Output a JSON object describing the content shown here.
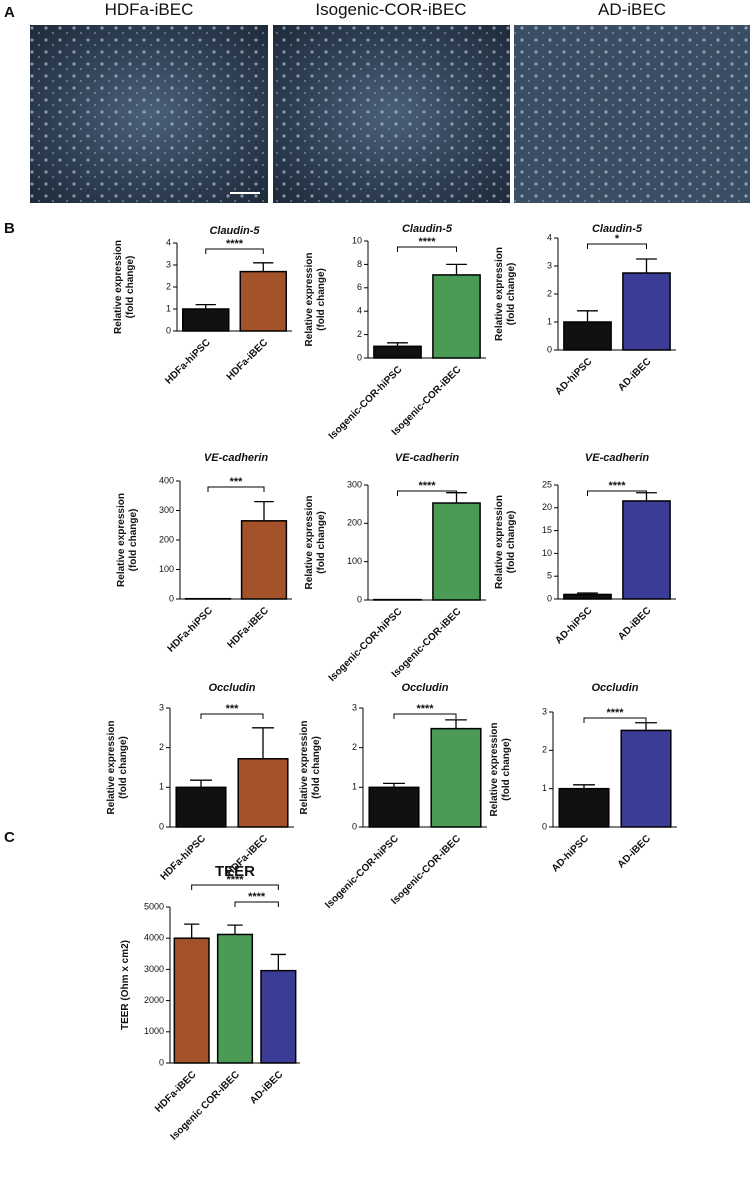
{
  "panel_labels": [
    "A",
    "B",
    "C"
  ],
  "images": [
    {
      "title": "HDFa-iBEC"
    },
    {
      "title": "Isogenic-COR-iBEC"
    },
    {
      "title": "AD-iBEC"
    }
  ],
  "chart_data": [
    {
      "type": "bar",
      "title": "Claudin-5",
      "ylabel": [
        "Relative expression",
        "(fold change)"
      ],
      "categories": [
        "HDFa-hiPSC",
        "HDFa-iBEC"
      ],
      "values": [
        1,
        2.7
      ],
      "errors": [
        0.2,
        0.4
      ],
      "colors": [
        "#111111",
        "#a3522a"
      ],
      "ylim": [
        0,
        4
      ],
      "yticks": [
        0,
        1,
        2,
        3,
        4
      ],
      "annotations": [
        {
          "text": "****",
          "span": [
            0,
            1
          ]
        }
      ]
    },
    {
      "type": "bar",
      "title": "Claudin-5",
      "ylabel": [
        "Relative expression",
        "(fold change)"
      ],
      "categories": [
        "Isogenic-COR-hiPSC",
        "Isogenic-COR-iBEC"
      ],
      "values": [
        1,
        7.1
      ],
      "errors": [
        0.3,
        0.9
      ],
      "colors": [
        "#111111",
        "#4b9a56"
      ],
      "ylim": [
        0,
        10
      ],
      "yticks": [
        0,
        2,
        4,
        6,
        8,
        10
      ],
      "annotations": [
        {
          "text": "****",
          "span": [
            0,
            1
          ]
        }
      ]
    },
    {
      "type": "bar",
      "title": "Claudin-5",
      "ylabel": [
        "Relative expression",
        "(fold change)"
      ],
      "categories": [
        "AD-hiPSC",
        "AD-iBEC"
      ],
      "values": [
        1,
        2.75
      ],
      "errors": [
        0.4,
        0.5
      ],
      "colors": [
        "#111111",
        "#3a3c95"
      ],
      "ylim": [
        0,
        4
      ],
      "yticks": [
        0,
        1,
        2,
        3,
        4
      ],
      "annotations": [
        {
          "text": "*",
          "span": [
            0,
            1
          ]
        }
      ]
    },
    {
      "type": "bar",
      "title": "VE-cadherin",
      "ylabel": [
        "Relative expression",
        "(fold change)"
      ],
      "categories": [
        "HDFa-hiPSC",
        "HDFa-iBEC"
      ],
      "values": [
        1,
        265
      ],
      "errors": [
        0,
        65
      ],
      "colors": [
        "#111111",
        "#a3522a"
      ],
      "ylim": [
        0,
        400
      ],
      "yticks": [
        0,
        100,
        200,
        300,
        400
      ],
      "annotations": [
        {
          "text": "***",
          "span": [
            0,
            1
          ]
        }
      ]
    },
    {
      "type": "bar",
      "title": "VE-cadherin",
      "ylabel": [
        "Relative expression",
        "(fold change)"
      ],
      "categories": [
        "Isogenic-COR-hiPSC",
        "Isogenic-COR-iBEC"
      ],
      "values": [
        1,
        253
      ],
      "errors": [
        0,
        27
      ],
      "colors": [
        "#111111",
        "#4b9a56"
      ],
      "ylim": [
        0,
        300
      ],
      "yticks": [
        0,
        100,
        200,
        300
      ],
      "annotations": [
        {
          "text": "****",
          "span": [
            0,
            1
          ]
        }
      ]
    },
    {
      "type": "bar",
      "title": "VE-cadherin",
      "ylabel": [
        "Relative expression",
        "(fold change)"
      ],
      "categories": [
        "AD-hiPSC",
        "AD-iBEC"
      ],
      "values": [
        1,
        21.5
      ],
      "errors": [
        0.3,
        1.8
      ],
      "colors": [
        "#111111",
        "#3a3c95"
      ],
      "ylim": [
        0,
        25
      ],
      "yticks": [
        0,
        5,
        10,
        15,
        20,
        25
      ],
      "annotations": [
        {
          "text": "****",
          "span": [
            0,
            1
          ]
        }
      ]
    },
    {
      "type": "bar",
      "title": "Occludin",
      "ylabel": [
        "Relative expression",
        "(fold change)"
      ],
      "categories": [
        "HDFa-hiPSC",
        "HDFa-iBEC"
      ],
      "values": [
        1,
        1.72
      ],
      "errors": [
        0.18,
        0.78
      ],
      "colors": [
        "#111111",
        "#a3522a"
      ],
      "ylim": [
        0,
        3
      ],
      "yticks": [
        0,
        1,
        2,
        3
      ],
      "annotations": [
        {
          "text": "***",
          "span": [
            0,
            1
          ]
        }
      ]
    },
    {
      "type": "bar",
      "title": "Occludin",
      "ylabel": [
        "Relative expression",
        "(fold change)"
      ],
      "categories": [
        "Isogenic-COR-hiPSC",
        "Isogenic-COR-iBEC"
      ],
      "values": [
        1,
        2.48
      ],
      "errors": [
        0.1,
        0.22
      ],
      "colors": [
        "#111111",
        "#4b9a56"
      ],
      "ylim": [
        0,
        3
      ],
      "yticks": [
        0,
        1,
        2,
        3
      ],
      "annotations": [
        {
          "text": "****",
          "span": [
            0,
            1
          ]
        }
      ]
    },
    {
      "type": "bar",
      "title": "Occludin",
      "ylabel": [
        "Relative expression",
        "(fold change)"
      ],
      "categories": [
        "AD-hiPSC",
        "AD-iBEC"
      ],
      "values": [
        1,
        2.52
      ],
      "errors": [
        0.1,
        0.2
      ],
      "colors": [
        "#111111",
        "#3a3c95"
      ],
      "ylim": [
        0,
        3
      ],
      "yticks": [
        0,
        1,
        2,
        3
      ],
      "annotations": [
        {
          "text": "****",
          "span": [
            0,
            1
          ]
        }
      ]
    },
    {
      "type": "bar",
      "title": "TEER",
      "ylabel": [
        "TEER (Ohm x cm2)"
      ],
      "categories": [
        "HDFa-iBEC",
        "Isogenic COR-iBEC",
        "AD-iBEC"
      ],
      "values": [
        4000,
        4120,
        2960
      ],
      "errors": [
        450,
        300,
        520
      ],
      "colors": [
        "#a3522a",
        "#4b9a56",
        "#3a3c95"
      ],
      "ylim": [
        0,
        5000
      ],
      "yticks": [
        0,
        1000,
        2000,
        3000,
        4000,
        5000
      ],
      "annotations": [
        {
          "text": "****",
          "span": [
            0,
            2
          ]
        },
        {
          "text": "****",
          "span": [
            1,
            2
          ]
        }
      ]
    }
  ]
}
